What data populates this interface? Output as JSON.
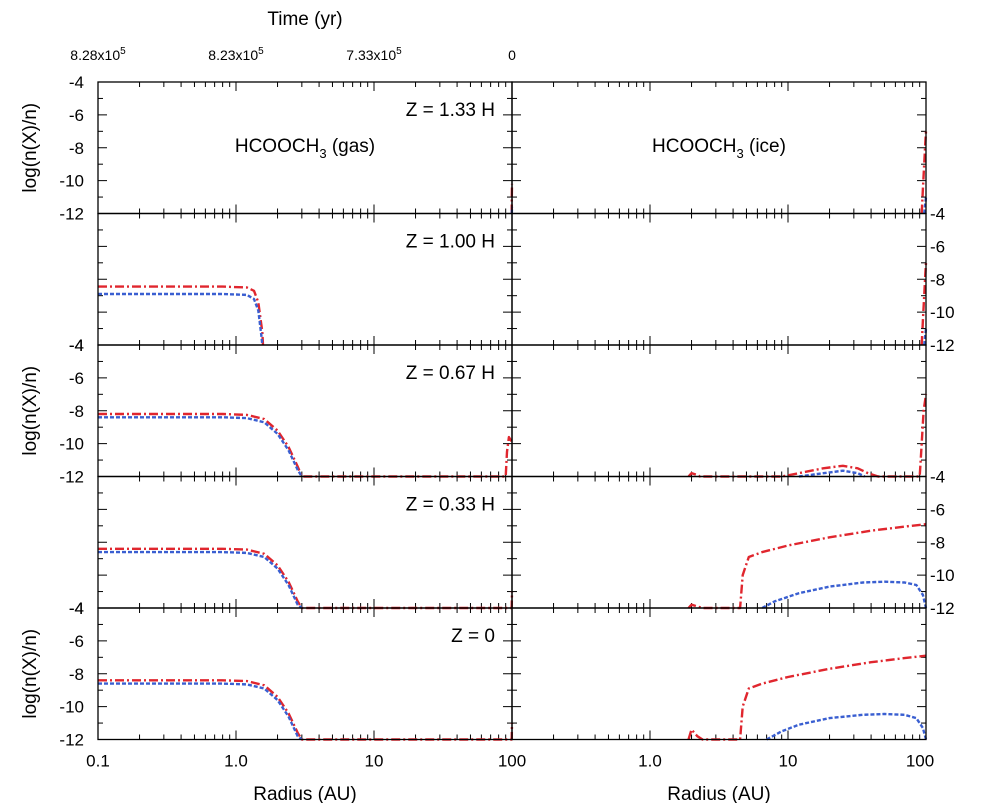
{
  "chart_data": {
    "type": "line",
    "x_scale": "log",
    "xlim": [
      0.1,
      100
    ],
    "ylim": [
      -12,
      -4
    ],
    "xlabel": "Radius (AU)",
    "ylabel": "log(n(X)/n)",
    "top_axis_label": "Time (yr)",
    "top_tick_labels": [
      {
        "base": "8.28x10",
        "exp": "5"
      },
      {
        "base": "8.23x10",
        "exp": "5"
      },
      {
        "base": "7.33x10",
        "exp": "5"
      },
      {
        "base": "0",
        "exp": ""
      }
    ],
    "x_tick_labels": [
      "0.1",
      "1.0",
      "10",
      "100"
    ],
    "x_tick_labels_right": [
      "",
      "1.0",
      "10",
      "100"
    ],
    "y_tick_labels": [
      "-4",
      "-6",
      "-8",
      "-10",
      "-12"
    ],
    "column_titles": [
      {
        "base": "HCOOCH",
        "sub": "3",
        "suffix": " (gas)"
      },
      {
        "base": "HCOOCH",
        "sub": "3",
        "suffix": " (ice)"
      }
    ],
    "series_colors": [
      "#e0262e",
      "#3a5fd1"
    ],
    "panels": [
      {
        "z_label": "Z = 1.33 H",
        "gas": [
          {
            "x": [
              99.5,
              99.7,
              100
            ],
            "y": [
              -12,
              -11,
              -10.2
            ]
          },
          {
            "x": [
              99.6,
              100
            ],
            "y": [
              -12,
              -11.6
            ]
          }
        ],
        "ice": [
          {
            "x": [
              93,
              95,
              97,
              99,
              100
            ],
            "y": [
              -12,
              -10.5,
              -9,
              -7.6,
              -7
            ]
          },
          {
            "x": [
              97,
              100
            ],
            "y": [
              -12,
              -11
            ]
          }
        ]
      },
      {
        "z_label": "Z = 1.00 H",
        "gas": [
          {
            "x": [
              0.1,
              0.3,
              0.8,
              1.2,
              1.35,
              1.45,
              1.55,
              1.57
            ],
            "y": [
              -8.45,
              -8.45,
              -8.45,
              -8.5,
              -8.7,
              -9.4,
              -11.2,
              -12
            ]
          },
          {
            "x": [
              0.1,
              0.3,
              0.8,
              1.2,
              1.35,
              1.45,
              1.53,
              1.55
            ],
            "y": [
              -8.9,
              -8.9,
              -8.9,
              -8.95,
              -9.2,
              -9.9,
              -11.5,
              -12
            ]
          }
        ],
        "ice": [
          {
            "x": [
              93,
              95,
              97,
              99,
              100
            ],
            "y": [
              -12,
              -10.5,
              -9,
              -7.6,
              -7
            ]
          },
          {
            "x": [
              97,
              100
            ],
            "y": [
              -12,
              -11
            ]
          }
        ]
      },
      {
        "z_label": "Z = 0.67 H",
        "gas": [
          {
            "x": [
              0.1,
              0.3,
              0.8,
              1.2,
              1.6,
              2.0,
              2.4,
              2.8,
              3.0,
              90,
              92,
              95,
              100
            ],
            "y": [
              -8.2,
              -8.2,
              -8.2,
              -8.25,
              -8.5,
              -9.2,
              -10.2,
              -11.4,
              -12,
              -12,
              -10.5,
              -9.6,
              -9.9
            ]
          },
          {
            "x": [
              0.1,
              0.3,
              0.8,
              1.2,
              1.6,
              2.0,
              2.4,
              2.8,
              3.0
            ],
            "y": [
              -8.4,
              -8.4,
              -8.4,
              -8.45,
              -8.7,
              -9.4,
              -10.4,
              -11.6,
              -12
            ]
          }
        ],
        "ice": [
          {
            "x": [
              1.9,
              2.0,
              2.2,
              2.3,
              9,
              12,
              18,
              25,
              32,
              38,
              45,
              90,
              93,
              96,
              100
            ],
            "y": [
              -12,
              -11.8,
              -11.9,
              -12,
              -12,
              -11.8,
              -11.5,
              -11.35,
              -11.5,
              -11.8,
              -12,
              -12,
              -10,
              -8,
              -7
            ]
          },
          {
            "x": [
              12,
              18,
              25,
              32,
              36
            ],
            "y": [
              -12,
              -11.8,
              -11.65,
              -11.8,
              -12
            ]
          }
        ]
      },
      {
        "z_label": "Z = 0.33 H",
        "gas": [
          {
            "x": [
              0.1,
              0.3,
              0.8,
              1.2,
              1.6,
              2.0,
              2.4,
              2.8,
              3.0,
              99.5,
              100
            ],
            "y": [
              -8.4,
              -8.4,
              -8.4,
              -8.45,
              -8.7,
              -9.4,
              -10.4,
              -11.6,
              -12,
              -12,
              -11
            ]
          },
          {
            "x": [
              0.1,
              0.3,
              0.8,
              1.2,
              1.6,
              2.0,
              2.4,
              2.8,
              3.0
            ],
            "y": [
              -8.6,
              -8.6,
              -8.6,
              -8.65,
              -8.9,
              -9.6,
              -10.6,
              -11.8,
              -12
            ]
          }
        ],
        "ice": [
          {
            "x": [
              1.9,
              2.0,
              2.2,
              2.4,
              4.5,
              4.7,
              5.2,
              6.5,
              10,
              20,
              40,
              70,
              100
            ],
            "y": [
              -12,
              -11.8,
              -11.9,
              -12,
              -12,
              -10,
              -8.9,
              -8.6,
              -8.2,
              -7.7,
              -7.3,
              -7.05,
              -6.9
            ]
          },
          {
            "x": [
              6.5,
              8,
              12,
              20,
              35,
              50,
              70,
              85,
              95,
              100
            ],
            "y": [
              -12,
              -11.6,
              -11.1,
              -10.7,
              -10.45,
              -10.4,
              -10.45,
              -10.6,
              -11.2,
              -12
            ]
          }
        ]
      },
      {
        "z_label": "Z = 0",
        "gas": [
          {
            "x": [
              0.1,
              0.3,
              0.8,
              1.2,
              1.6,
              2.0,
              2.4,
              2.8,
              3.0,
              99.5,
              100
            ],
            "y": [
              -8.4,
              -8.4,
              -8.4,
              -8.45,
              -8.7,
              -9.4,
              -10.4,
              -11.6,
              -12,
              -12,
              -11
            ]
          },
          {
            "x": [
              0.1,
              0.3,
              0.8,
              1.2,
              1.6,
              2.0,
              2.4,
              2.8,
              3.0
            ],
            "y": [
              -8.6,
              -8.6,
              -8.6,
              -8.65,
              -8.9,
              -9.6,
              -10.6,
              -11.8,
              -12
            ]
          }
        ],
        "ice": [
          {
            "x": [
              1.9,
              2.0,
              2.2,
              2.4,
              4.5,
              4.7,
              5.2,
              6.5,
              10,
              20,
              40,
              70,
              100
            ],
            "y": [
              -12,
              -11.4,
              -11.8,
              -12,
              -12,
              -10,
              -8.9,
              -8.6,
              -8.2,
              -7.7,
              -7.3,
              -7.05,
              -6.9
            ]
          },
          {
            "x": [
              7,
              9,
              12,
              20,
              35,
              50,
              70,
              85,
              95,
              100
            ],
            "y": [
              -12,
              -11.5,
              -11.1,
              -10.7,
              -10.5,
              -10.45,
              -10.5,
              -10.7,
              -11.3,
              -12
            ]
          }
        ]
      }
    ]
  }
}
